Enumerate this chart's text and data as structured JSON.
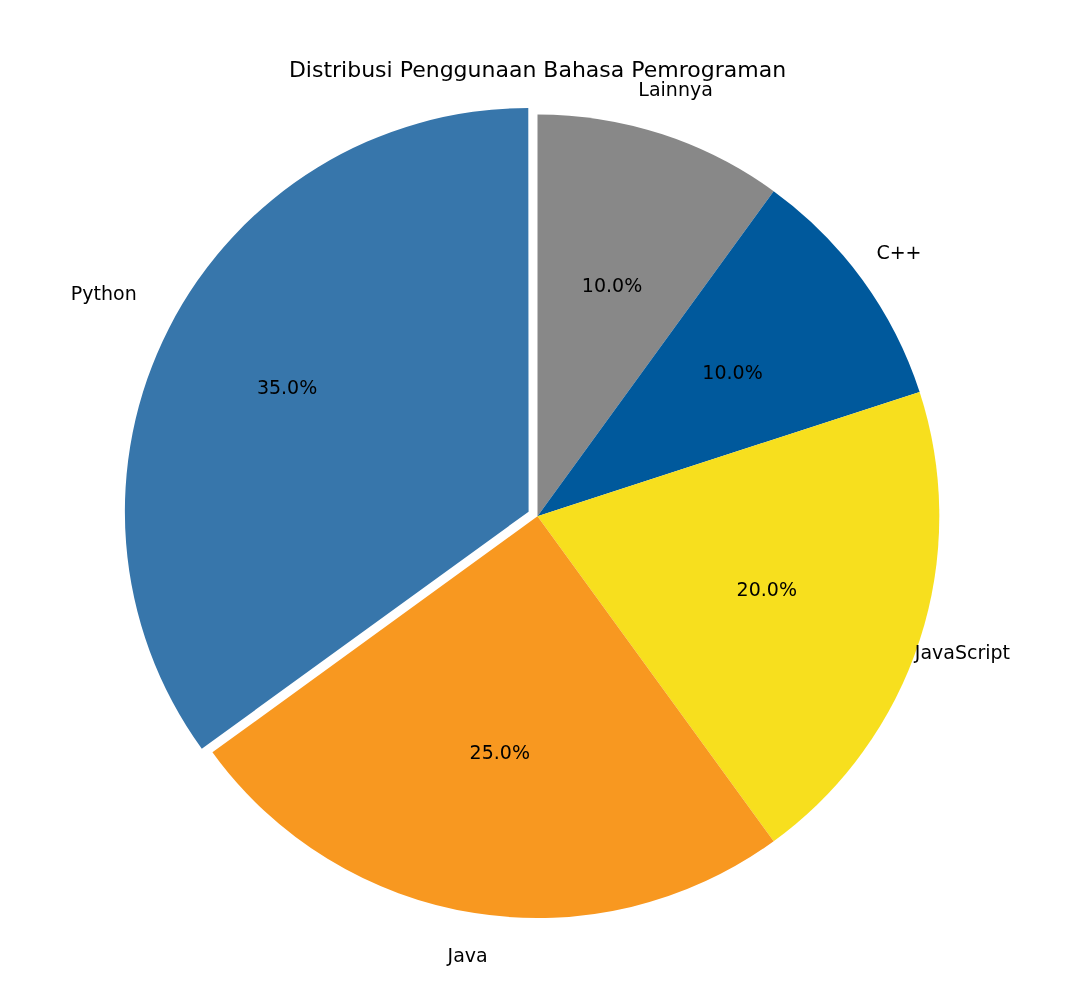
{
  "chart_data": {
    "type": "pie",
    "title": "Distribusi Penggunaan Bahasa Pemrograman",
    "categories": [
      "Python",
      "Java",
      "JavaScript",
      "C++",
      "Lainnya"
    ],
    "values": [
      35,
      25,
      20,
      10,
      10
    ],
    "colors": [
      "#3776ab",
      "#f89820",
      "#f7df1e",
      "#00599c",
      "#888888"
    ],
    "value_labels": [
      "35.0%",
      "25.0%",
      "20.0%",
      "10.0%",
      "10.0%"
    ],
    "legend": false
  }
}
